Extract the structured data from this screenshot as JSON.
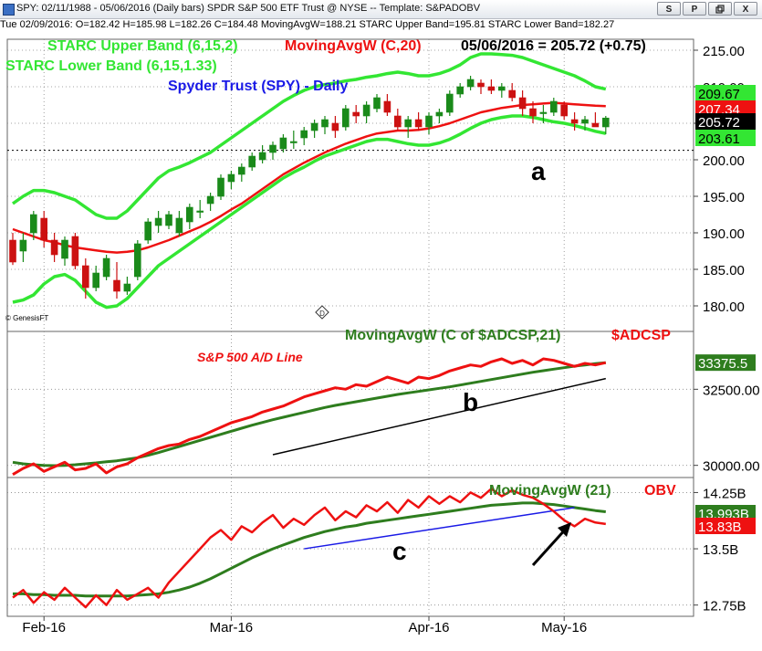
{
  "window": {
    "title": "SPY: 02/11/1988 - 05/06/2016 (Daily bars)  SPDR S&P 500 ETF Trust @ NYSE  --  Template: S&PADOBV",
    "buttons": [
      "S",
      "P",
      "",
      "X"
    ]
  },
  "infobar": {
    "text": "Tue  02/09/2016: O=182.42  H=185.98  L=182.26  C=184.48  MovingAvgW=188.21  STARC Upper Band=195.81  STARC Lower Band=182.27"
  },
  "colors": {
    "candle_up": "#1a8a1a",
    "candle_down": "#cc1111",
    "band": "#33e633",
    "moving_avg": "#ee1111",
    "title_blue": "#1a1ae6",
    "ma_green": "#2e7d1e",
    "trend_black": "#000000",
    "trend_blue": "#1a1ae6"
  },
  "panels": {
    "price": {
      "labels": {
        "upper": "STARC Upper Band (6,15,2)",
        "ma": "MovingAvgW (C,20)",
        "lastdate": "05/06/2016 = 205.72 (+0.75)",
        "lower": "STARC Lower Band (6,15,1.33)",
        "title": "Spyder Trust (SPY) - Daily",
        "annot": "a",
        "copyright": "© GenesisFT"
      },
      "yticks": [
        "215.00",
        "210.00",
        "205.00",
        "200.00",
        "195.00",
        "190.00",
        "185.00",
        "180.00"
      ],
      "value_tags": [
        {
          "text": "209.67",
          "bg": "#33e633",
          "fg": "#000000"
        },
        {
          "text": "207.34",
          "bg": "#ee1111",
          "fg": "#ffffff"
        },
        {
          "text": "205.72",
          "bg": "#000000",
          "fg": "#ffffff"
        },
        {
          "text": "203.61",
          "bg": "#33e633",
          "fg": "#000000"
        }
      ],
      "dashed_level": 201.3
    },
    "ad": {
      "labels": {
        "ma": "MovingAvgW (C of $ADCSP,21)",
        "sym": "$ADCSP",
        "title": "S&P 500 A/D Line",
        "annot": "b"
      },
      "yticks": [
        "32500.00",
        "30000.00"
      ],
      "value_tags": [
        {
          "text": "33375.5",
          "bg": "#2e7d1e",
          "fg": "#ffffff"
        }
      ]
    },
    "obv": {
      "labels": {
        "ma": "MovingAvgW (21)",
        "sym": "OBV",
        "annot": "c"
      },
      "yticks": [
        "14.25B",
        "13.5B",
        "12.75B"
      ],
      "value_tags": [
        {
          "text": "13.993B",
          "bg": "#2e7d1e",
          "fg": "#ffffff"
        },
        {
          "text": "13.83B",
          "bg": "#ee1111",
          "fg": "#ffffff"
        }
      ]
    }
  },
  "xaxis": [
    "Feb-16",
    "Mar-16",
    "Apr-16",
    "May-16"
  ],
  "chart_data": [
    {
      "type": "candlestick",
      "title": "Spyder Trust (SPY) - Daily",
      "x_labels": [
        "Feb-16",
        "Mar-16",
        "Apr-16",
        "May-16"
      ],
      "ylim": [
        176.5,
        216.5
      ],
      "ohlc": [
        [
          189.0,
          190.0,
          185.6,
          186.0
        ],
        [
          187.5,
          190.0,
          186.0,
          189.0
        ],
        [
          190.0,
          193.0,
          189.0,
          192.5
        ],
        [
          192.0,
          193.0,
          188.0,
          189.0
        ],
        [
          189.0,
          190.0,
          186.0,
          187.0
        ],
        [
          186.5,
          189.5,
          185.5,
          189.0
        ],
        [
          189.5,
          190.0,
          185.0,
          185.5
        ],
        [
          185.5,
          186.5,
          181.0,
          182.5
        ],
        [
          182.5,
          185.5,
          182.0,
          184.5
        ],
        [
          184.0,
          187.0,
          183.5,
          186.5
        ],
        [
          183.5,
          186.0,
          181.0,
          182.0
        ],
        [
          182.0,
          184.0,
          181.5,
          183.0
        ],
        [
          184.0,
          189.0,
          183.5,
          188.5
        ],
        [
          189.0,
          192.0,
          188.5,
          191.5
        ],
        [
          191.0,
          193.0,
          190.0,
          192.0
        ],
        [
          191.0,
          193.0,
          190.5,
          192.5
        ],
        [
          190.0,
          193.0,
          189.5,
          192.0
        ],
        [
          191.5,
          194.0,
          190.5,
          193.5
        ],
        [
          193.0,
          194.5,
          192.0,
          193.0
        ],
        [
          194.0,
          195.5,
          193.0,
          195.0
        ],
        [
          195.0,
          198.0,
          194.5,
          197.5
        ],
        [
          197.0,
          198.5,
          196.0,
          198.0
        ],
        [
          198.0,
          199.5,
          197.0,
          199.0
        ],
        [
          199.0,
          201.0,
          198.5,
          200.5
        ],
        [
          200.0,
          202.0,
          199.5,
          201.0
        ],
        [
          201.0,
          202.5,
          200.0,
          202.0
        ],
        [
          201.5,
          203.5,
          201.0,
          203.0
        ],
        [
          202.5,
          204.0,
          201.5,
          202.5
        ],
        [
          203.0,
          204.5,
          202.0,
          204.0
        ],
        [
          204.0,
          205.5,
          203.0,
          205.0
        ],
        [
          204.5,
          206.0,
          203.5,
          205.5
        ],
        [
          205.0,
          206.0,
          203.0,
          204.0
        ],
        [
          204.5,
          207.5,
          204.0,
          207.0
        ],
        [
          206.5,
          207.5,
          205.0,
          206.0
        ],
        [
          206.0,
          208.0,
          205.0,
          207.5
        ],
        [
          207.0,
          209.0,
          206.5,
          208.5
        ],
        [
          208.0,
          209.0,
          206.0,
          206.5
        ],
        [
          206.0,
          207.0,
          204.0,
          204.5
        ],
        [
          204.5,
          206.0,
          203.0,
          205.5
        ],
        [
          205.5,
          206.5,
          204.0,
          204.5
        ],
        [
          204.5,
          206.5,
          203.5,
          206.0
        ],
        [
          206.0,
          207.0,
          205.0,
          206.5
        ],
        [
          206.5,
          209.5,
          206.0,
          209.0
        ],
        [
          209.0,
          210.5,
          208.5,
          210.0
        ],
        [
          210.0,
          211.5,
          209.5,
          211.0
        ],
        [
          210.5,
          211.0,
          209.0,
          210.0
        ],
        [
          210.0,
          211.0,
          209.0,
          209.5
        ],
        [
          209.5,
          210.5,
          208.5,
          210.0
        ],
        [
          209.5,
          210.5,
          208.0,
          208.5
        ],
        [
          208.5,
          209.5,
          206.0,
          207.0
        ],
        [
          207.0,
          208.0,
          205.0,
          206.0
        ],
        [
          206.5,
          207.5,
          205.0,
          206.5
        ],
        [
          206.5,
          208.5,
          206.0,
          208.0
        ],
        [
          207.5,
          208.0,
          205.5,
          206.0
        ],
        [
          205.5,
          206.5,
          204.0,
          205.0
        ],
        [
          205.0,
          206.0,
          204.0,
          205.5
        ],
        [
          205.0,
          206.5,
          204.5,
          204.5
        ],
        [
          204.5,
          206.0,
          203.5,
          205.72
        ]
      ],
      "series": [
        {
          "name": "STARC Upper Band (6,15,2)",
          "values": [
            194.0,
            195.0,
            195.8,
            195.8,
            195.5,
            195.0,
            194.5,
            193.5,
            192.5,
            192.0,
            192.0,
            193.0,
            194.5,
            196.0,
            197.5,
            198.5,
            199.0,
            199.6,
            200.3,
            201.0,
            202.0,
            203.0,
            204.0,
            205.0,
            206.0,
            207.0,
            208.0,
            208.8,
            209.5,
            210.0,
            210.3,
            210.5,
            210.8,
            211.0,
            211.3,
            211.5,
            211.8,
            212.0,
            211.8,
            211.5,
            211.5,
            211.8,
            212.3,
            213.0,
            214.0,
            214.5,
            214.5,
            214.4,
            214.3,
            214.0,
            213.5,
            213.0,
            212.5,
            212.0,
            211.5,
            210.8,
            210.0,
            209.67
          ]
        },
        {
          "name": "MovingAvgW (C,20)",
          "values": [
            190.5,
            190.0,
            189.5,
            189.0,
            188.7,
            188.3,
            188.0,
            187.8,
            187.6,
            187.4,
            187.3,
            187.4,
            187.6,
            188.0,
            188.5,
            189.0,
            189.6,
            190.2,
            190.8,
            191.5,
            192.3,
            193.2,
            194.0,
            195.0,
            196.0,
            197.0,
            198.0,
            198.8,
            199.6,
            200.3,
            201.0,
            201.6,
            202.2,
            202.7,
            203.2,
            203.6,
            203.8,
            204.0,
            204.0,
            204.1,
            204.3,
            204.6,
            205.0,
            205.5,
            206.0,
            206.5,
            206.8,
            207.1,
            207.3,
            207.5,
            207.6,
            207.7,
            207.8,
            207.7,
            207.6,
            207.5,
            207.4,
            207.34
          ]
        },
        {
          "name": "STARC Lower Band (6,15,1.33)",
          "values": [
            180.5,
            180.8,
            181.5,
            183.0,
            184.0,
            184.3,
            183.5,
            182.0,
            180.5,
            179.8,
            180.0,
            181.0,
            182.5,
            184.0,
            185.5,
            186.5,
            187.5,
            188.5,
            189.5,
            190.5,
            191.5,
            192.5,
            193.5,
            194.5,
            195.5,
            196.5,
            197.5,
            198.3,
            199.0,
            199.8,
            200.5,
            201.0,
            201.5,
            202.0,
            202.5,
            202.8,
            202.8,
            202.5,
            202.2,
            202.0,
            202.0,
            202.3,
            202.8,
            203.5,
            204.3,
            205.0,
            205.5,
            205.8,
            206.0,
            206.0,
            205.8,
            205.5,
            205.2,
            205.0,
            204.7,
            204.3,
            203.9,
            203.61
          ]
        }
      ]
    },
    {
      "type": "line",
      "title": "S&P 500 A/D Line",
      "x_labels": [
        "Feb-16",
        "Mar-16",
        "Apr-16",
        "May-16"
      ],
      "ylim": [
        29600,
        34400
      ],
      "series": [
        {
          "name": "$ADCSP",
          "values": [
            29700,
            29900,
            30050,
            29800,
            29950,
            30100,
            29850,
            29900,
            30050,
            29750,
            29950,
            30050,
            30250,
            30400,
            30550,
            30650,
            30700,
            30850,
            30950,
            31100,
            31250,
            31400,
            31500,
            31600,
            31750,
            31850,
            31950,
            32100,
            32250,
            32350,
            32450,
            32550,
            32500,
            32650,
            32600,
            32750,
            32900,
            32800,
            32700,
            32900,
            32850,
            32950,
            33100,
            33200,
            33300,
            33250,
            33400,
            33500,
            33350,
            33450,
            33300,
            33500,
            33450,
            33350,
            33250,
            33350,
            33300,
            33375
          ]
        },
        {
          "name": "MovingAvgW (C of $ADCSP,21)",
          "values": [
            30100,
            30050,
            30020,
            30000,
            29990,
            30000,
            30020,
            30050,
            30080,
            30120,
            30150,
            30200,
            30250,
            30330,
            30420,
            30520,
            30620,
            30720,
            30820,
            30920,
            31020,
            31120,
            31220,
            31320,
            31410,
            31500,
            31580,
            31660,
            31740,
            31820,
            31900,
            31970,
            32030,
            32090,
            32150,
            32210,
            32270,
            32330,
            32380,
            32430,
            32480,
            32530,
            32580,
            32640,
            32700,
            32760,
            32820,
            32880,
            32940,
            33000,
            33060,
            33110,
            33160,
            33210,
            33260,
            33300,
            33340,
            33375
          ]
        },
        {
          "name": "",
          "values": [
            30350,
            32850
          ]
        }
      ]
    },
    {
      "type": "line",
      "title": "OBV",
      "x_labels": [
        "Feb-16",
        "Mar-16",
        "Apr-16",
        "May-16"
      ],
      "ylim": [
        12.6,
        14.45
      ],
      "series": [
        {
          "name": "OBV",
          "values": [
            12.85,
            12.95,
            12.78,
            12.92,
            12.82,
            12.98,
            12.85,
            12.72,
            12.88,
            12.75,
            12.95,
            12.82,
            12.9,
            12.98,
            12.85,
            13.05,
            13.2,
            13.35,
            13.5,
            13.65,
            13.75,
            13.62,
            13.8,
            13.72,
            13.85,
            13.95,
            13.78,
            13.9,
            13.82,
            13.95,
            14.05,
            13.88,
            14.0,
            13.92,
            14.08,
            14.0,
            14.12,
            13.98,
            14.15,
            14.05,
            14.2,
            14.1,
            14.2,
            14.12,
            14.25,
            14.18,
            14.3,
            14.2,
            14.28,
            14.22,
            14.18,
            14.1,
            14.0,
            13.88,
            13.8,
            13.9,
            13.85,
            13.83
          ]
        },
        {
          "name": "MovingAvgW (21)",
          "values": [
            12.9,
            12.9,
            12.89,
            12.89,
            12.88,
            12.88,
            12.88,
            12.87,
            12.87,
            12.87,
            12.87,
            12.87,
            12.88,
            12.89,
            12.9,
            12.92,
            12.95,
            12.99,
            13.04,
            13.1,
            13.17,
            13.24,
            13.31,
            13.38,
            13.44,
            13.5,
            13.55,
            13.6,
            13.65,
            13.69,
            13.73,
            13.76,
            13.79,
            13.81,
            13.84,
            13.86,
            13.88,
            13.9,
            13.92,
            13.94,
            13.96,
            13.98,
            14.0,
            14.02,
            14.04,
            14.06,
            14.08,
            14.09,
            14.1,
            14.11,
            14.11,
            14.1,
            14.09,
            14.07,
            14.05,
            14.03,
            14.01,
            13.993
          ]
        },
        {
          "name": "",
          "values": [
            13.5,
            14.05
          ]
        }
      ]
    }
  ]
}
